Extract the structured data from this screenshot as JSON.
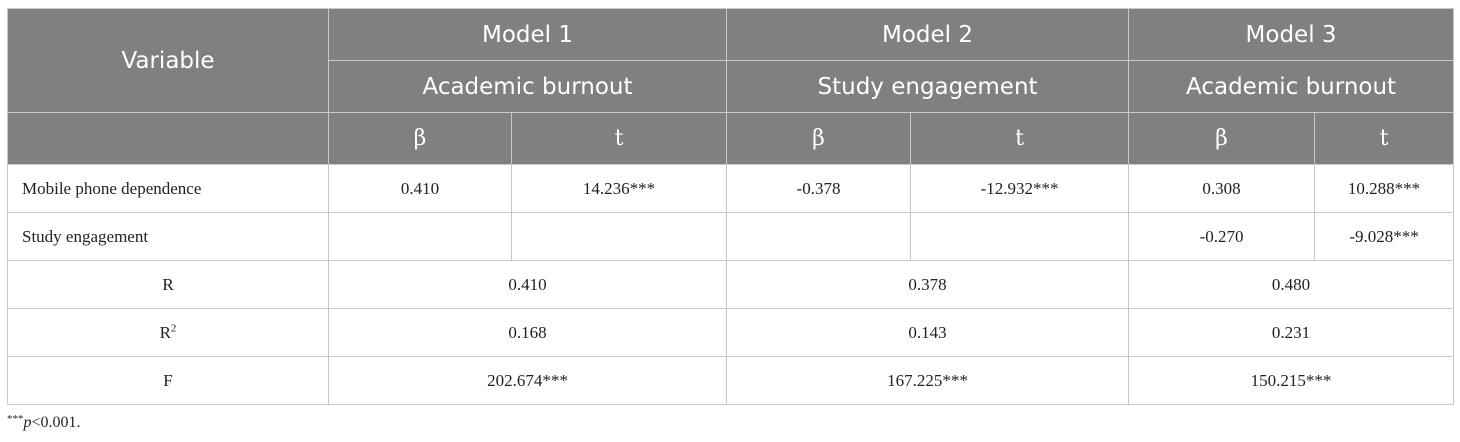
{
  "header": {
    "variable": "Variable",
    "models": [
      {
        "name": "Model 1",
        "outcome": "Academic burnout",
        "beta": "β",
        "t": "t"
      },
      {
        "name": "Model 2",
        "outcome": "Study engagement",
        "beta": "β",
        "t": "t"
      },
      {
        "name": "Model 3",
        "outcome": "Academic burnout",
        "beta": "β",
        "t": "t"
      }
    ]
  },
  "rows": {
    "mobile": {
      "label": "Mobile phone dependence",
      "m1_beta": "0.410",
      "m1_t": "14.236***",
      "m2_beta": "-0.378",
      "m2_t": "-12.932***",
      "m3_beta": "0.308",
      "m3_t": "10.288***"
    },
    "study": {
      "label": "Study engagement",
      "m1_beta": "",
      "m1_t": "",
      "m2_beta": "",
      "m2_t": "",
      "m3_beta": "-0.270",
      "m3_t": "-9.028***"
    },
    "r": {
      "label": "R",
      "m1": "0.410",
      "m2": "0.378",
      "m3": "0.480"
    },
    "r2": {
      "label_base": "R",
      "label_sup": "2",
      "m1": "0.168",
      "m2": "0.143",
      "m3": "0.231"
    },
    "f": {
      "label": "F",
      "m1": "202.674***",
      "m2": "167.225***",
      "m3": "150.215***"
    }
  },
  "footnote": {
    "stars": "***",
    "p": "p",
    "rest": "<0.001."
  }
}
